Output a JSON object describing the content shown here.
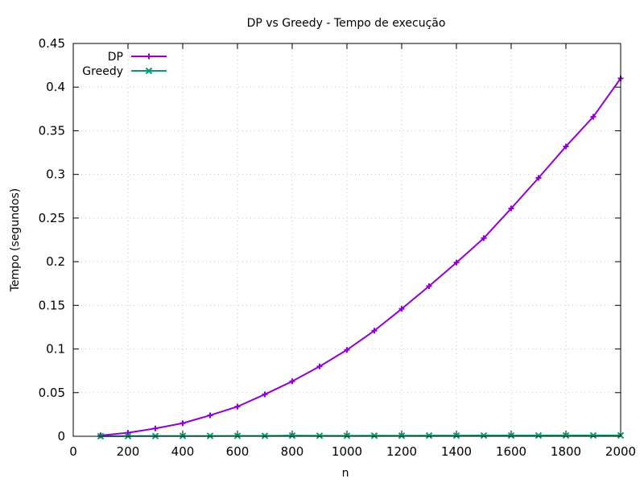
{
  "chart_data": {
    "type": "line",
    "title": "DP vs Greedy - Tempo de execução",
    "xlabel": "n",
    "ylabel": "Tempo (segundos)",
    "xlim": [
      0,
      2000
    ],
    "ylim": [
      0,
      0.45
    ],
    "x_ticks": [
      "0",
      "200",
      "400",
      "600",
      "800",
      "1000",
      "1200",
      "1400",
      "1600",
      "1800",
      "2000"
    ],
    "y_ticks": [
      "0",
      "0.05",
      "0.1",
      "0.15",
      "0.2",
      "0.25",
      "0.3",
      "0.35",
      "0.4",
      "0.45"
    ],
    "grid": true,
    "legend_position": "top-left",
    "x": [
      100,
      200,
      300,
      400,
      500,
      600,
      700,
      800,
      900,
      1000,
      1100,
      1200,
      1300,
      1400,
      1500,
      1600,
      1700,
      1800,
      1900,
      2000
    ],
    "series": [
      {
        "name": "DP",
        "color": "#9400d3",
        "marker": "plus",
        "values": [
          0.001,
          0.004,
          0.009,
          0.015,
          0.024,
          0.034,
          0.048,
          0.063,
          0.08,
          0.099,
          0.121,
          0.146,
          0.172,
          0.199,
          0.227,
          0.261,
          0.296,
          0.332,
          0.366,
          0.41
        ]
      },
      {
        "name": "Greedy",
        "color": "#009e73",
        "marker": "cross",
        "values": [
          0.0001,
          0.0002,
          0.0003,
          0.0004,
          0.0004,
          0.0005,
          0.0005,
          0.0008,
          0.0006,
          0.0006,
          0.0007,
          0.0007,
          0.0008,
          0.0008,
          0.0009,
          0.0009,
          0.0009,
          0.001,
          0.001,
          0.001
        ]
      }
    ]
  }
}
